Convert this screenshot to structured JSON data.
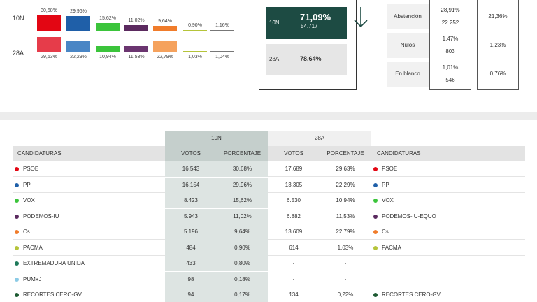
{
  "results": {
    "labels": {
      "n10": "10N",
      "a28": "28A"
    },
    "parties": [
      {
        "key": "psoe",
        "color": "#e30613",
        "color28": "#e63c4a",
        "pct_10n": "30,68%",
        "pct_28a": "29,63%",
        "value_10n": 30.68,
        "value_28a": 29.63
      },
      {
        "key": "pp",
        "color": "#1f5fa8",
        "color28": "#4a86c5",
        "pct_10n": "29,96%",
        "pct_28a": "22,29%",
        "value_10n": 29.96,
        "value_28a": 22.29
      },
      {
        "key": "vox",
        "color": "#3bc43b",
        "color28": "#3bc43b",
        "pct_10n": "15,62%",
        "pct_28a": "10,94%",
        "value_10n": 15.62,
        "value_28a": 10.94
      },
      {
        "key": "podemos",
        "color": "#5b2a5f",
        "color28": "#6b3570",
        "pct_10n": "11,02%",
        "pct_28a": "11,53%",
        "value_10n": 11.02,
        "value_28a": 11.53
      },
      {
        "key": "cs",
        "color": "#f07c2b",
        "color28": "#f5a25d",
        "pct_10n": "9,64%",
        "pct_28a": "22,79%",
        "value_10n": 9.64,
        "value_28a": 22.79
      },
      {
        "key": "pacma",
        "color": "#b5c43a",
        "color28": "#b5c43a",
        "pct_10n": "0,90%",
        "pct_28a": "1,03%",
        "value_10n": 0.9,
        "value_28a": 1.03
      },
      {
        "key": "other",
        "color": "#777777",
        "color28": "#777777",
        "pct_10n": "1,16%",
        "pct_28a": "1,04%",
        "value_10n": 1.16,
        "value_28a": 1.04
      }
    ]
  },
  "turnout": {
    "n10_label": "10N",
    "n10_pct": "71,09%",
    "n10_votes": "54.717",
    "a28_label": "28A",
    "a28_pct": "78,64%"
  },
  "stats": [
    {
      "label": "Abstención",
      "n10_pct": "28,91%",
      "n10_votes": "22.252",
      "a28_pct": "21,36%"
    },
    {
      "label": "Nulos",
      "n10_pct": "1,47%",
      "n10_votes": "803",
      "a28_pct": "1,23%"
    },
    {
      "label": "En blanco",
      "n10_pct": "1,01%",
      "n10_votes": "546",
      "a28_pct": "0,76%"
    }
  ],
  "table": {
    "group_10n": "10N",
    "group_28a": "28A",
    "headers": {
      "candidaturas": "CANDIDATURAS",
      "votos_10n": "VOTOS",
      "pct_10n": "PORCENTAJE",
      "votos_28a": "VOTOS",
      "pct_28a": "PORCENTAJE",
      "candidaturas_28a": "CANDIDATURAS"
    },
    "rows": [
      {
        "name": "PSOE",
        "color": "#e30613",
        "votos_10n": "16.543",
        "pct_10n": "30,68%",
        "votos_28a": "17.689",
        "pct_28a": "29,63%",
        "name_28a": "PSOE",
        "color_28a": "#e30613"
      },
      {
        "name": "PP",
        "color": "#1f5fa8",
        "votos_10n": "16.154",
        "pct_10n": "29,96%",
        "votos_28a": "13.305",
        "pct_28a": "22,29%",
        "name_28a": "PP",
        "color_28a": "#1f5fa8"
      },
      {
        "name": "VOX",
        "color": "#3bc43b",
        "votos_10n": "8.423",
        "pct_10n": "15,62%",
        "votos_28a": "6.530",
        "pct_28a": "10,94%",
        "name_28a": "VOX",
        "color_28a": "#3bc43b"
      },
      {
        "name": "PODEMOS-IU",
        "color": "#5b2a5f",
        "votos_10n": "5.943",
        "pct_10n": "11,02%",
        "votos_28a": "6.882",
        "pct_28a": "11,53%",
        "name_28a": "PODEMOS-IU-EQUO",
        "color_28a": "#5b2a5f"
      },
      {
        "name": "Cs",
        "color": "#f07c2b",
        "votos_10n": "5.196",
        "pct_10n": "9,64%",
        "votos_28a": "13.609",
        "pct_28a": "22,79%",
        "name_28a": "Cs",
        "color_28a": "#f07c2b"
      },
      {
        "name": "PACMA",
        "color": "#b5c43a",
        "votos_10n": "484",
        "pct_10n": "0,90%",
        "votos_28a": "614",
        "pct_28a": "1,03%",
        "name_28a": "PACMA",
        "color_28a": "#b5c43a"
      },
      {
        "name": "EXTREMADURA UNIDA",
        "color": "#1e7a5a",
        "votos_10n": "433",
        "pct_10n": "0,80%",
        "votos_28a": "-",
        "pct_28a": "-",
        "name_28a": "",
        "color_28a": ""
      },
      {
        "name": "PUM+J",
        "color": "#8ccbe6",
        "votos_10n": "98",
        "pct_10n": "0,18%",
        "votos_28a": "-",
        "pct_28a": "-",
        "name_28a": "",
        "color_28a": ""
      },
      {
        "name": "RECORTES CERO-GV",
        "color": "#1d5a32",
        "votos_10n": "94",
        "pct_10n": "0,17%",
        "votos_28a": "134",
        "pct_28a": "0,22%",
        "name_28a": "RECORTES CERO-GV",
        "color_28a": "#1d5a32"
      }
    ]
  }
}
